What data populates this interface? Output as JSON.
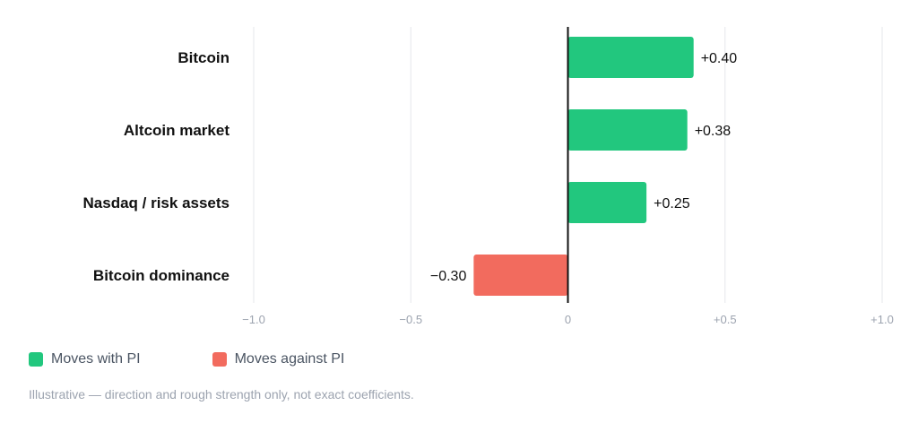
{
  "chart_data": {
    "type": "bar",
    "orientation": "horizontal",
    "categories": [
      "Bitcoin",
      "Altcoin market",
      "Nasdaq / risk assets",
      "Bitcoin dominance"
    ],
    "values": [
      0.4,
      0.38,
      0.25,
      -0.3
    ],
    "value_labels": [
      "+0.40",
      "+0.38",
      "+0.25",
      "−0.30"
    ],
    "xlim": [
      -1.0,
      1.0
    ],
    "x_ticks": [
      -1.0,
      -0.5,
      0,
      0.5,
      1.0
    ],
    "x_tick_labels": [
      "−1.0",
      "−0.5",
      "0",
      "+0.5",
      "+1.0"
    ],
    "grid": true,
    "legend_position": "bottom-left",
    "title": "",
    "xlabel": "",
    "ylabel": ""
  },
  "legend": {
    "items": [
      {
        "label": "Moves with PI",
        "color": "#22c77e"
      },
      {
        "label": "Moves against PI",
        "color": "#f26b5e"
      }
    ]
  },
  "colors": {
    "positive": "#22c77e",
    "negative": "#f26b5e",
    "grid": "#e5e7eb",
    "zero_line": "#111111",
    "category_text": "#111111",
    "tick_text": "#9ca3af"
  },
  "footnote": "Illustrative — direction and rough strength only, not exact coefficients."
}
